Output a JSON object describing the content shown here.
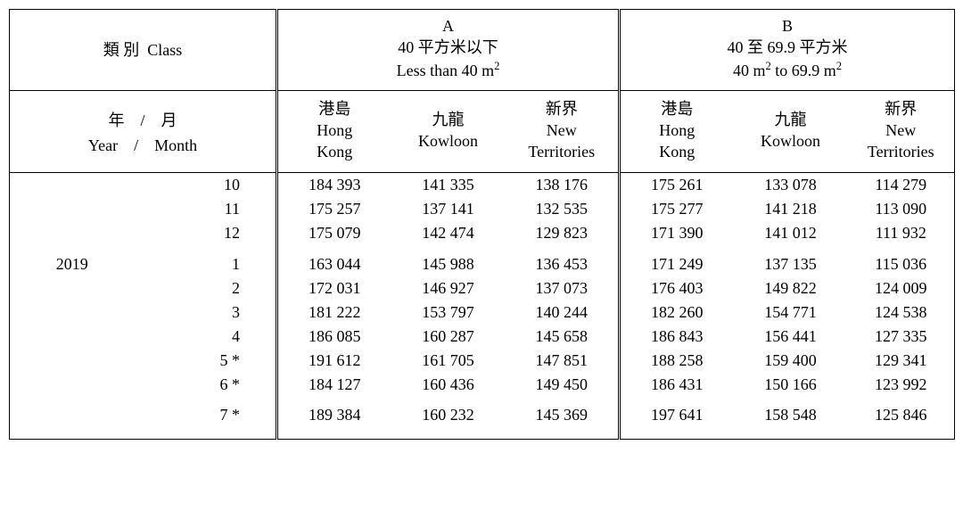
{
  "header": {
    "class_label_cn": "類 別",
    "class_label_en": "Class",
    "groupA": {
      "code": "A",
      "cn": "40 平方米以下",
      "en_pre": "Less than 40 m",
      "en_sup": "2"
    },
    "groupB": {
      "code": "B",
      "cn": "40 至 69.9 平方米",
      "en_pre": "40 m",
      "en_mid": " to 69.9 m",
      "en_sup": "2"
    },
    "year_cn": "年",
    "month_cn": "月",
    "year_en": "Year",
    "month_en": "Month",
    "slash": "/",
    "cols": {
      "hk_cn": "港島",
      "hk_en1": "Hong",
      "hk_en2": "Kong",
      "kl_cn": "九龍",
      "kl_en1": "",
      "kl_en2": "Kowloon",
      "nt_cn": "新界",
      "nt_en1": "New",
      "nt_en2": "Territories"
    }
  },
  "year_label": "2019",
  "rows": [
    {
      "year": "",
      "month": "10",
      "a_hk": "184 393",
      "a_kl": "141 335",
      "a_nt": "138 176",
      "b_hk": "175 261",
      "b_kl": "133 078",
      "b_nt": "114 279"
    },
    {
      "year": "",
      "month": "11",
      "a_hk": "175 257",
      "a_kl": "137 141",
      "a_nt": "132 535",
      "b_hk": "175 277",
      "b_kl": "141 218",
      "b_nt": "113 090"
    },
    {
      "year": "",
      "month": "12",
      "a_hk": "175 079",
      "a_kl": "142 474",
      "a_nt": "129 823",
      "b_hk": "171 390",
      "b_kl": "141 012",
      "b_nt": "111 932"
    },
    {
      "year": "2019",
      "month": "1",
      "a_hk": "163 044",
      "a_kl": "145 988",
      "a_nt": "136 453",
      "b_hk": "171 249",
      "b_kl": "137 135",
      "b_nt": "115 036"
    },
    {
      "year": "",
      "month": "2",
      "a_hk": "172 031",
      "a_kl": "146 927",
      "a_nt": "137 073",
      "b_hk": "176 403",
      "b_kl": "149 822",
      "b_nt": "124 009"
    },
    {
      "year": "",
      "month": "3",
      "a_hk": "181 222",
      "a_kl": "153 797",
      "a_nt": "140 244",
      "b_hk": "182 260",
      "b_kl": "154 771",
      "b_nt": "124 538"
    },
    {
      "year": "",
      "month": "4",
      "a_hk": "186 085",
      "a_kl": "160 287",
      "a_nt": "145 658",
      "b_hk": "186 843",
      "b_kl": "156 441",
      "b_nt": "127 335"
    },
    {
      "year": "",
      "month": "5 *",
      "a_hk": "191 612",
      "a_kl": "161 705",
      "a_nt": "147 851",
      "b_hk": "188 258",
      "b_kl": "159 400",
      "b_nt": "129 341"
    },
    {
      "year": "",
      "month": "6 *",
      "a_hk": "184 127",
      "a_kl": "160 436",
      "a_nt": "149 450",
      "b_hk": "186 431",
      "b_kl": "150 166",
      "b_nt": "123 992"
    },
    {
      "year": "",
      "month": "7 *",
      "a_hk": "189 384",
      "a_kl": "160 232",
      "a_nt": "145 369",
      "b_hk": "197 641",
      "b_kl": "158 548",
      "b_nt": "125 846"
    }
  ]
}
